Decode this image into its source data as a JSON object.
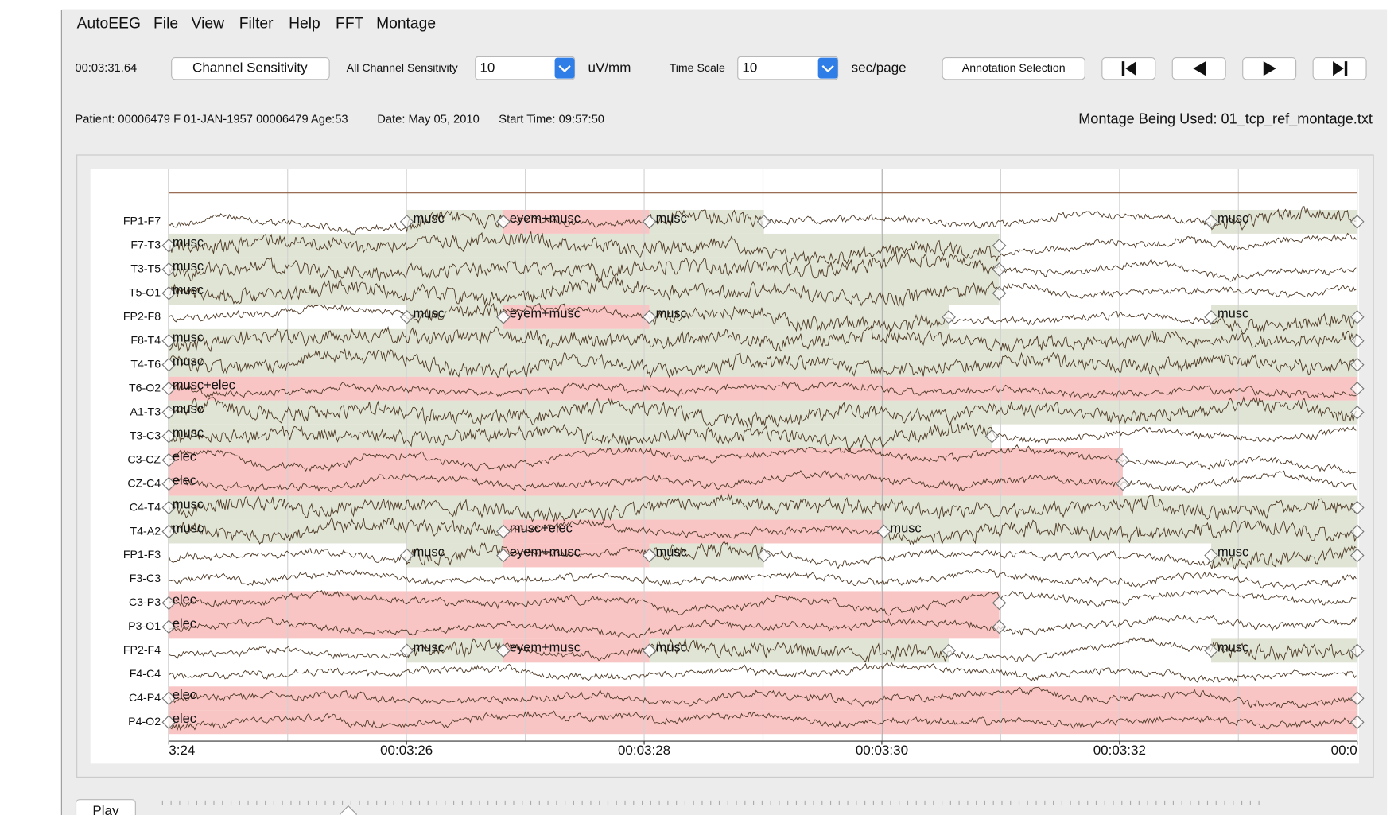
{
  "menu": [
    "AutoEEG",
    "File",
    "View",
    "Filter",
    "Help",
    "FFT",
    "Montage"
  ],
  "toolbar": {
    "time": "00:03:31.64",
    "channel_sensitivity_button": "Channel Sensitivity",
    "all_channel_sensitivity_label": "All Channel Sensitivity",
    "sensitivity_value": "10",
    "sensitivity_unit": "uV/mm",
    "time_scale_label": "Time Scale",
    "time_scale_value": "10",
    "time_scale_unit": "sec/page",
    "annotation_button": "Annotation Selection"
  },
  "info": {
    "patient": "Patient: 00006479 F 01-JAN-1957 00006479 Age:53",
    "date": "Date: May 05, 2010",
    "start_time": "Start Time: 09:57:50",
    "montage": "Montage Being Used: 01_tcp_ref_montage.txt"
  },
  "channels": [
    {
      "name": "FP1-F7",
      "annotations": [
        "musc",
        "eyem+musc",
        "musc",
        "musc"
      ]
    },
    {
      "name": "F7-T3",
      "annotations": [
        "musc"
      ]
    },
    {
      "name": "T3-T5",
      "annotations": [
        "musc"
      ]
    },
    {
      "name": "T5-O1",
      "annotations": [
        "musc"
      ]
    },
    {
      "name": "FP2-F8",
      "annotations": [
        "musc",
        "eyem+musc",
        "musc",
        "musc"
      ]
    },
    {
      "name": "F8-T4",
      "annotations": [
        "musc"
      ]
    },
    {
      "name": "T4-T6",
      "annotations": [
        "musc"
      ]
    },
    {
      "name": "T6-O2",
      "annotations": [
        "musc+elec"
      ]
    },
    {
      "name": "A1-T3",
      "annotations": [
        "musc"
      ]
    },
    {
      "name": "T3-C3",
      "annotations": [
        "musc"
      ]
    },
    {
      "name": "C3-CZ",
      "annotations": [
        "elec"
      ]
    },
    {
      "name": "CZ-C4",
      "annotations": [
        "elec"
      ]
    },
    {
      "name": "C4-T4",
      "annotations": [
        "musc"
      ]
    },
    {
      "name": "T4-A2",
      "annotations": [
        "musc",
        "musc+elec",
        "musc"
      ]
    },
    {
      "name": "FP1-F3",
      "annotations": [
        "musc",
        "eyem+musc",
        "musc",
        "musc"
      ]
    },
    {
      "name": "F3-C3",
      "annotations": []
    },
    {
      "name": "C3-P3",
      "annotations": [
        "elec"
      ]
    },
    {
      "name": "P3-O1",
      "annotations": [
        "elec"
      ]
    },
    {
      "name": "FP2-F4",
      "annotations": [
        "musc",
        "eyem+musc",
        "musc",
        "musc"
      ]
    },
    {
      "name": "F4-C4",
      "annotations": []
    },
    {
      "name": "C4-P4",
      "annotations": [
        "elec"
      ]
    },
    {
      "name": "P4-O2",
      "annotations": [
        "elec"
      ]
    }
  ],
  "time_axis": [
    "3:24",
    "00:03:26",
    "00:03:28",
    "00:03:30",
    "00:03:32",
    "00:0"
  ],
  "play_button": "Play"
}
